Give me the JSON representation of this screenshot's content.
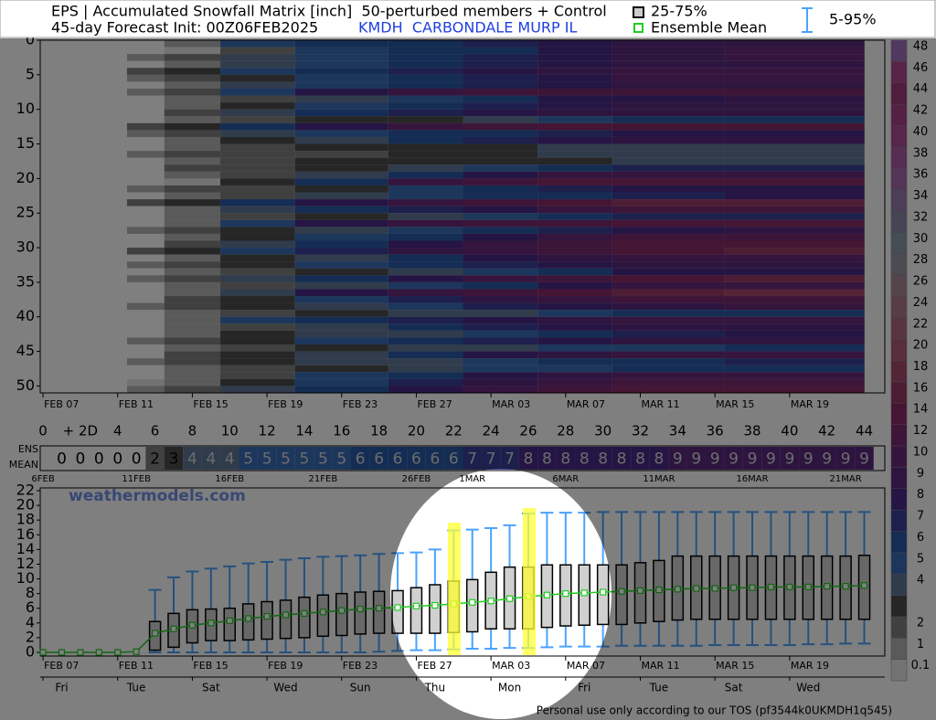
{
  "header": {
    "title": "EPS | Accumulated Snowfall Matrix [inch]  50-perturbed members + Control",
    "subtitle": "45-day Forecast Init: 00Z06FEB2025",
    "station": "KMDH  CARBONDALE MURP IL"
  },
  "watermark": "weathermodels.com",
  "footer": "Personal use only according to our TOS (pf3544k0UKMDH1q545)",
  "chart_data": [
    {
      "type": "heatmap",
      "xlim": [
        -0.15,
        45.1
      ],
      "ylim": [
        0,
        51
      ],
      "yticks": [
        0,
        5,
        10,
        15,
        20,
        25,
        30,
        35,
        40,
        45,
        50
      ],
      "xticks": [
        {
          "value": 0,
          "label": "FEB 07"
        },
        {
          "value": 4,
          "label": "FEB 11"
        },
        {
          "value": 8,
          "label": "FEB 15"
        },
        {
          "value": 12,
          "label": "FEB 19"
        },
        {
          "value": 16,
          "label": "FEB 23"
        },
        {
          "value": 20,
          "label": "FEB 27"
        },
        {
          "value": 24,
          "label": "MAR 03"
        },
        {
          "value": 28,
          "label": "MAR 07"
        },
        {
          "value": 32,
          "label": "MAR 11"
        },
        {
          "value": 36,
          "label": "MAR 15"
        },
        {
          "value": 40,
          "label": "MAR 19"
        }
      ],
      "x": [
        4,
        6,
        9,
        13,
        18,
        22,
        26,
        30,
        36
      ],
      "matrix": [
        [
          0,
          1,
          5,
          6,
          6,
          7,
          8,
          9,
          9
        ],
        [
          0,
          0.5,
          2,
          5,
          6,
          6,
          8,
          9,
          10
        ],
        [
          1,
          2,
          4,
          5,
          6,
          7,
          8,
          9,
          10
        ],
        [
          0,
          1,
          4,
          5,
          6,
          7,
          8,
          9,
          9
        ],
        [
          2,
          3,
          5,
          6,
          7,
          8,
          9,
          10,
          10
        ],
        [
          1,
          2,
          3,
          5,
          6,
          7,
          8,
          10,
          10
        ],
        [
          0,
          1,
          4,
          5,
          6,
          7,
          8,
          9,
          9
        ],
        [
          1,
          2,
          5,
          8,
          10,
          12,
          12,
          12,
          12
        ],
        [
          0,
          1,
          2,
          4,
          5,
          6,
          8,
          8,
          9
        ],
        [
          0,
          1,
          3,
          5,
          6,
          7,
          8,
          9,
          9
        ],
        [
          0,
          2,
          4,
          6,
          7,
          8,
          9,
          9,
          9
        ],
        [
          0,
          1,
          2,
          3,
          3,
          4,
          5,
          6,
          6
        ],
        [
          2,
          3,
          6,
          8,
          10,
          12,
          14,
          14,
          14
        ],
        [
          1,
          2,
          4,
          5,
          6,
          6,
          7,
          8,
          8
        ],
        [
          0,
          1,
          3,
          4,
          6,
          7,
          8,
          9,
          9
        ],
        [
          0,
          1,
          2,
          3,
          3,
          3,
          4,
          4,
          4
        ],
        [
          1,
          2,
          2,
          2,
          3,
          3,
          4,
          4,
          4
        ],
        [
          0,
          1,
          2,
          3,
          3,
          3,
          3,
          4,
          4
        ],
        [
          0,
          2,
          2,
          3,
          4,
          5,
          6,
          7,
          7
        ],
        [
          0,
          1,
          2,
          4,
          6,
          8,
          10,
          10,
          10
        ],
        [
          0,
          0.5,
          3,
          6,
          10,
          12,
          14,
          14,
          14
        ],
        [
          1,
          2,
          2,
          3,
          5,
          6,
          7,
          8,
          8
        ],
        [
          0,
          1,
          2,
          4,
          5,
          6,
          6,
          7,
          8
        ],
        [
          2,
          3,
          6,
          8,
          10,
          12,
          14,
          16,
          16
        ],
        [
          0,
          1,
          4,
          6,
          7,
          8,
          10,
          12,
          12
        ],
        [
          0,
          1,
          2,
          3,
          4,
          5,
          6,
          7,
          7
        ],
        [
          0,
          1,
          5,
          8,
          10,
          12,
          12,
          14,
          14
        ],
        [
          1,
          2,
          3,
          4,
          5,
          6,
          7,
          8,
          9
        ],
        [
          0,
          1,
          3,
          5,
          6,
          8,
          10,
          12,
          12
        ],
        [
          0,
          2,
          4,
          6,
          8,
          10,
          12,
          14,
          14
        ],
        [
          2,
          3,
          5,
          7,
          9,
          10,
          12,
          14,
          16
        ],
        [
          0,
          1,
          3,
          4,
          6,
          8,
          9,
          10,
          10
        ],
        [
          1,
          2,
          3,
          5,
          6,
          7,
          8,
          9,
          9
        ],
        [
          0,
          1,
          2,
          3,
          4,
          5,
          6,
          8,
          8
        ],
        [
          1,
          2,
          4,
          6,
          8,
          10,
          12,
          14,
          16
        ],
        [
          0,
          1,
          2,
          4,
          5,
          6,
          8,
          10,
          10
        ],
        [
          0,
          1,
          4,
          8,
          10,
          12,
          14,
          16,
          18
        ],
        [
          0,
          2,
          3,
          5,
          7,
          9,
          10,
          12,
          12
        ],
        [
          1,
          2,
          3,
          4,
          5,
          7,
          8,
          9,
          10
        ],
        [
          0,
          1,
          2,
          3,
          4,
          4,
          5,
          6,
          6
        ],
        [
          0,
          1,
          5,
          6,
          7,
          8,
          9,
          10,
          10
        ],
        [
          0,
          1,
          2,
          4,
          6,
          7,
          8,
          9,
          9
        ],
        [
          0,
          1,
          3,
          4,
          4,
          5,
          6,
          7,
          8
        ],
        [
          1,
          2,
          3,
          5,
          6,
          7,
          8,
          9,
          9
        ],
        [
          0,
          1,
          2,
          3,
          4,
          4,
          5,
          5,
          6
        ],
        [
          0,
          2,
          3,
          4,
          6,
          8,
          9,
          10,
          10
        ],
        [
          1,
          2,
          3,
          4,
          4,
          5,
          6,
          6,
          7
        ],
        [
          0,
          1,
          2,
          3,
          4,
          5,
          5,
          6,
          6
        ],
        [
          0,
          1,
          2,
          5,
          6,
          8,
          9,
          10,
          10
        ],
        [
          0.5,
          1,
          3,
          5,
          7,
          9,
          10,
          12,
          12
        ],
        [
          1,
          2,
          4,
          6,
          8,
          10,
          12,
          14,
          14
        ]
      ],
      "colorbar": {
        "levels": [
          0.1,
          1,
          2,
          3,
          4,
          5,
          6,
          7,
          8,
          9,
          10,
          12,
          14,
          16,
          18,
          20,
          22,
          24,
          26,
          28,
          30,
          32,
          34,
          36,
          38,
          40,
          42,
          44,
          46,
          48
        ],
        "colors": [
          "#e6e6e6",
          "#b4b4b4",
          "#808080",
          "#4d4d4d",
          "#607898",
          "#3a6fb8",
          "#2a5aa8",
          "#3a3f98",
          "#4a2a88",
          "#5a2a80",
          "#6a2a7a",
          "#7a2a70",
          "#8a2a68",
          "#9a3a68",
          "#a84a6e",
          "#b05a78",
          "#b06a80",
          "#b07a8a",
          "#a88896",
          "#9a94a2",
          "#8c9aa8",
          "#8a8aa8",
          "#9a7ab0",
          "#a86ab0",
          "#b05aa8",
          "#b04a98",
          "#a84088",
          "#a03a78",
          "#b04a90",
          "#a070c0"
        ],
        "ticks": [
          0.1,
          1,
          2,
          4,
          5,
          6,
          7,
          8,
          9,
          10,
          12,
          14,
          16,
          18,
          20,
          22,
          24,
          26,
          28,
          30,
          32,
          34,
          36,
          38,
          40,
          42,
          44,
          46,
          48
        ]
      }
    },
    {
      "type": "mean-row",
      "label": [
        "ENS",
        "MEAN"
      ],
      "xticks": [
        0,
        {
          "value": 2,
          "label": "+ 2D"
        },
        4,
        6,
        8,
        10,
        12,
        14,
        16,
        18,
        20,
        22,
        24,
        26,
        28,
        30,
        32,
        34,
        36,
        38,
        40,
        42,
        44
      ],
      "x2ticks": [
        {
          "value": 0,
          "label": "6FEB"
        },
        {
          "value": 5,
          "label": "11FEB"
        },
        {
          "value": 10,
          "label": "16FEB"
        },
        {
          "value": 15,
          "label": "21FEB"
        },
        {
          "value": 20,
          "label": "26FEB"
        },
        {
          "value": 23,
          "label": "1MAR"
        },
        {
          "value": 28,
          "label": "6MAR"
        },
        {
          "value": 33,
          "label": "11MAR"
        },
        {
          "value": 38,
          "label": "16MAR"
        },
        {
          "value": 43,
          "label": "21MAR"
        }
      ],
      "x": [
        1,
        2,
        3,
        4,
        5,
        6,
        7,
        8,
        9,
        10,
        11,
        12,
        13,
        14,
        15,
        16,
        17,
        18,
        19,
        20,
        21,
        22,
        23,
        24,
        25,
        26,
        27,
        28,
        29,
        30,
        31,
        32,
        33,
        34,
        35,
        36,
        37,
        38,
        39,
        40,
        41,
        42,
        43,
        44
      ],
      "values": [
        0,
        0,
        0,
        0,
        0,
        2,
        3,
        4,
        4,
        4,
        5,
        5,
        5,
        5,
        5,
        5,
        6,
        6,
        6,
        6,
        6,
        6,
        7,
        7,
        7,
        8,
        8,
        8,
        8,
        8,
        8,
        8,
        8,
        9,
        9,
        9,
        9,
        9,
        9,
        9,
        9,
        9,
        9,
        9
      ]
    },
    {
      "type": "box",
      "ylim": [
        0,
        22
      ],
      "yticks": [
        0,
        2,
        4,
        6,
        8,
        10,
        12,
        14,
        16,
        18,
        20,
        22
      ],
      "xticks": [
        {
          "value": 0,
          "label": "FEB 07"
        },
        {
          "value": 4,
          "label": "FEB 11"
        },
        {
          "value": 8,
          "label": "FEB 15"
        },
        {
          "value": 12,
          "label": "FEB 19"
        },
        {
          "value": 16,
          "label": "FEB 23"
        },
        {
          "value": 20,
          "label": "FEB 27"
        },
        {
          "value": 24,
          "label": "MAR 03"
        },
        {
          "value": 28,
          "label": "MAR 07"
        },
        {
          "value": 32,
          "label": "MAR 11"
        },
        {
          "value": 36,
          "label": "MAR 15"
        },
        {
          "value": 40,
          "label": "MAR 19"
        }
      ],
      "x2ticks": [
        {
          "value": 1,
          "label": "Fri"
        },
        {
          "value": 5,
          "label": "Tue"
        },
        {
          "value": 9,
          "label": "Sat"
        },
        {
          "value": 13,
          "label": "Wed"
        },
        {
          "value": 17,
          "label": "Sun"
        },
        {
          "value": 21,
          "label": "Thu"
        },
        {
          "value": 25,
          "label": "Mon"
        },
        {
          "value": 29,
          "label": "Fri"
        },
        {
          "value": 33,
          "label": "Tue"
        },
        {
          "value": 37,
          "label": "Sat"
        },
        {
          "value": 41,
          "label": "Wed"
        }
      ],
      "x": [
        0,
        1,
        2,
        3,
        4,
        5,
        6,
        7,
        8,
        9,
        10,
        11,
        12,
        13,
        14,
        15,
        16,
        17,
        18,
        19,
        20,
        21,
        22,
        23,
        24,
        25,
        26,
        27,
        28,
        29,
        30,
        31,
        32,
        33,
        34,
        35,
        36,
        37,
        38,
        39,
        40,
        41,
        42,
        43,
        44
      ],
      "mean": [
        0,
        0,
        0,
        0,
        0,
        0.1,
        2.6,
        3.2,
        3.7,
        4.0,
        4.3,
        4.6,
        4.9,
        5.1,
        5.3,
        5.5,
        5.7,
        5.9,
        6.0,
        6.1,
        6.3,
        6.4,
        6.6,
        6.8,
        7.0,
        7.3,
        7.6,
        7.8,
        8.0,
        8.1,
        8.2,
        8.3,
        8.4,
        8.5,
        8.6,
        8.7,
        8.7,
        8.8,
        8.8,
        8.9,
        8.9,
        8.9,
        9.0,
        9.0,
        9.1
      ],
      "p25": [
        null,
        null,
        null,
        null,
        null,
        null,
        0.3,
        0.7,
        1.3,
        1.6,
        1.6,
        1.7,
        1.8,
        1.9,
        2.0,
        2.2,
        2.3,
        2.5,
        2.6,
        2.6,
        2.6,
        2.6,
        2.7,
        2.8,
        3.2,
        3.2,
        3.2,
        3.4,
        3.6,
        3.7,
        3.8,
        3.8,
        4.0,
        4.2,
        4.4,
        4.5,
        4.5,
        4.5,
        4.5,
        4.5,
        4.5,
        4.5,
        4.5,
        4.5,
        4.5
      ],
      "p75": [
        null,
        null,
        null,
        null,
        null,
        null,
        4.2,
        5.3,
        5.8,
        5.9,
        6.0,
        6.6,
        6.9,
        7.1,
        7.5,
        7.8,
        8.0,
        8.2,
        8.3,
        8.4,
        8.8,
        9.2,
        9.7,
        9.9,
        10.9,
        11.6,
        11.6,
        11.9,
        11.9,
        11.9,
        11.9,
        11.9,
        12.2,
        12.5,
        13.1,
        13.1,
        13.1,
        13.1,
        13.1,
        13.1,
        13.1,
        13.1,
        13.1,
        13.1,
        13.2
      ],
      "p5": [
        null,
        null,
        null,
        null,
        null,
        null,
        0,
        0,
        0,
        0,
        0,
        0,
        0,
        0,
        0,
        0,
        0,
        0,
        0.1,
        0.2,
        0.3,
        0.3,
        0.4,
        0.5,
        0.5,
        0.6,
        0.6,
        0.7,
        0.8,
        0.8,
        0.8,
        0.9,
        0.9,
        0.9,
        0.9,
        0.9,
        1.0,
        1.0,
        1.0,
        1.0,
        1.0,
        1.1,
        1.1,
        1.2,
        1.2
      ],
      "p95": [
        null,
        null,
        null,
        null,
        null,
        null,
        8.5,
        10.2,
        11.0,
        11.4,
        11.7,
        12.1,
        12.3,
        12.6,
        12.8,
        13.0,
        13.1,
        13.2,
        13.4,
        13.5,
        13.6,
        14.0,
        16.6,
        16.7,
        16.9,
        17.3,
        18.9,
        19.0,
        19.0,
        19.0,
        19.1,
        19.1,
        19.1,
        19.1,
        19.1,
        19.1,
        19.1,
        19.1,
        19.1,
        19.1,
        19.1,
        19.1,
        19.1,
        19.1,
        19.1
      ],
      "box_color": "#d0d0d0",
      "mean_color": "#22cc22",
      "whisker_color": "#4aa3ff",
      "legend": {
        "box": "25-75%",
        "mean": "Ensemble Mean",
        "whisker": "5-95%"
      }
    }
  ]
}
